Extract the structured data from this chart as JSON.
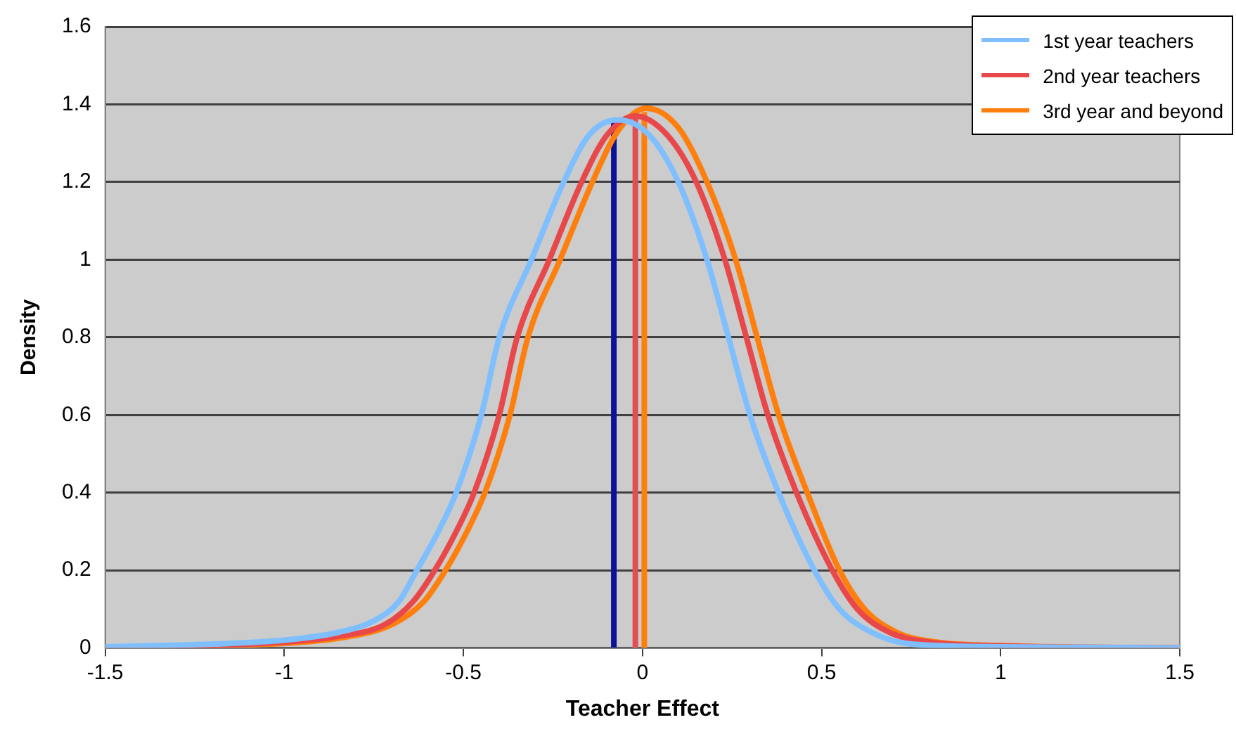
{
  "chart_data": {
    "type": "line",
    "xlabel": "Teacher Effect",
    "ylabel": "Density",
    "xlim": [
      -1.5,
      1.5
    ],
    "xticks": [
      -1.5,
      -1,
      -0.5,
      0,
      0.5,
      1,
      1.5
    ],
    "ylim": [
      0,
      1.6
    ],
    "yticks": [
      0,
      0.2,
      0.4,
      0.6,
      0.8,
      1,
      1.2,
      1.4,
      1.6
    ],
    "grid": "y",
    "legend": "top right",
    "marker": "none",
    "line_style": "solid",
    "series": [
      {
        "name": "1st year teachers",
        "color": "#7fbfff",
        "x": [
          -1.5,
          -1.2,
          -1,
          -0.85,
          -0.75,
          -0.68,
          -0.63,
          -0.57,
          -0.52,
          -0.45,
          -0.4,
          -0.31,
          -0.22,
          -0.15,
          -0.07,
          0.02,
          0.1,
          0.18,
          0.24,
          0.3,
          0.38,
          0.48,
          0.55,
          0.64,
          0.75,
          1,
          1.5
        ],
        "values": [
          0.003,
          0.01,
          0.02,
          0.04,
          0.07,
          0.12,
          0.2,
          0.3,
          0.4,
          0.6,
          0.8,
          1,
          1.2,
          1.32,
          1.36,
          1.32,
          1.2,
          1,
          0.8,
          0.6,
          0.4,
          0.2,
          0.1,
          0.04,
          0.01,
          0.003,
          0
        ]
      },
      {
        "name": "2nd year teachers",
        "color": "#e8484a",
        "x": [
          -1.5,
          -1.2,
          -1,
          -0.85,
          -0.72,
          -0.64,
          -0.58,
          -0.52,
          -0.47,
          -0.4,
          -0.35,
          -0.26,
          -0.17,
          -0.1,
          -0.02,
          0.07,
          0.15,
          0.23,
          0.29,
          0.35,
          0.43,
          0.53,
          0.6,
          0.69,
          0.8,
          1,
          1.5
        ],
        "values": [
          0.002,
          0.007,
          0.015,
          0.03,
          0.06,
          0.12,
          0.2,
          0.3,
          0.4,
          0.6,
          0.8,
          1,
          1.2,
          1.32,
          1.37,
          1.32,
          1.2,
          1,
          0.8,
          0.6,
          0.4,
          0.2,
          0.1,
          0.04,
          0.015,
          0.005,
          0
        ]
      },
      {
        "name": "3rd year and beyond",
        "color": "#ff7f0e",
        "x": [
          -1.5,
          -1.2,
          -1,
          -0.85,
          -0.7,
          -0.61,
          -0.55,
          -0.49,
          -0.44,
          -0.37,
          -0.32,
          -0.23,
          -0.14,
          -0.07,
          0.01,
          0.1,
          0.18,
          0.26,
          0.32,
          0.38,
          0.46,
          0.55,
          0.62,
          0.71,
          0.82,
          1,
          1.5
        ],
        "values": [
          0.002,
          0.006,
          0.012,
          0.025,
          0.06,
          0.12,
          0.2,
          0.3,
          0.4,
          0.6,
          0.8,
          1,
          1.2,
          1.33,
          1.39,
          1.34,
          1.2,
          1,
          0.8,
          0.6,
          0.4,
          0.2,
          0.1,
          0.04,
          0.015,
          0.006,
          0
        ]
      },
      {
        "color": "#0b129a",
        "x": [
          -0.08,
          -0.08
        ],
        "values": [
          0,
          1.36
        ]
      },
      {
        "color": "#e05050",
        "x": [
          -0.02,
          -0.02
        ],
        "values": [
          0,
          1.37
        ]
      },
      {
        "color": "#ff7f0e",
        "x": [
          0.005,
          0.005
        ],
        "values": [
          0,
          1.38
        ]
      }
    ]
  }
}
